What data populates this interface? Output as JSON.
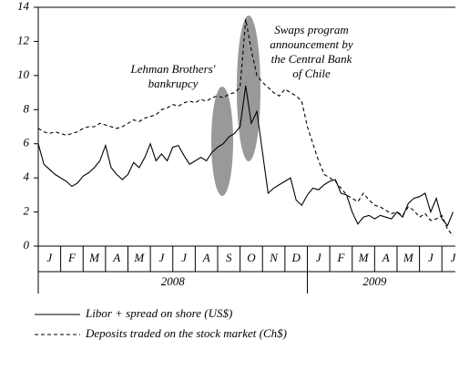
{
  "chart_data": {
    "type": "line",
    "x": [
      0,
      0.25,
      0.5,
      0.75,
      1,
      1.25,
      1.5,
      1.75,
      2,
      2.25,
      2.5,
      2.75,
      3,
      3.25,
      3.5,
      3.75,
      4,
      4.25,
      4.5,
      4.75,
      5,
      5.25,
      5.5,
      5.75,
      6,
      6.25,
      6.5,
      6.75,
      7,
      7.25,
      7.5,
      7.75,
      8,
      8.25,
      8.5,
      8.75,
      9,
      9.25,
      9.5,
      9.75,
      10,
      10.25,
      10.5,
      10.75,
      11,
      11.25,
      11.5,
      11.75,
      12,
      12.25,
      12.5,
      12.75,
      13,
      13.25,
      13.5,
      13.75,
      14,
      14.25,
      14.5,
      14.75,
      15,
      15.25,
      15.5,
      15.75,
      16,
      16.25,
      16.5,
      16.75,
      17,
      17.25,
      17.5,
      17.75,
      18,
      18.25,
      18.5
    ],
    "series": [
      {
        "name": "Libor + spread on shore (US$)",
        "color": "#000000",
        "dash": "none",
        "values": [
          6.0,
          4.8,
          4.5,
          4.2,
          4.0,
          3.8,
          3.5,
          3.7,
          4.1,
          4.3,
          4.6,
          5.0,
          5.9,
          4.6,
          4.2,
          3.9,
          4.2,
          4.9,
          4.6,
          5.2,
          6.0,
          5.0,
          5.4,
          5.0,
          5.8,
          5.9,
          5.3,
          4.8,
          5.0,
          5.2,
          5.0,
          5.5,
          5.8,
          6.0,
          6.4,
          6.6,
          7.0,
          9.4,
          7.2,
          7.9,
          5.5,
          3.1,
          3.4,
          3.6,
          3.8,
          4.0,
          2.7,
          2.4,
          3.0,
          3.4,
          3.3,
          3.6,
          3.8,
          3.9,
          3.1,
          3.0,
          2.0,
          1.3,
          1.7,
          1.8,
          1.6,
          1.8,
          1.7,
          1.6,
          2.0,
          1.7,
          2.5,
          2.8,
          2.9,
          3.1,
          2.0,
          2.8,
          1.6,
          1.2,
          2.0
        ]
      },
      {
        "name": "Deposits traded on the stock market (Ch$)",
        "color": "#000000",
        "dash": "4,3",
        "values": [
          6.9,
          6.7,
          6.6,
          6.7,
          6.6,
          6.5,
          6.6,
          6.7,
          6.9,
          7.0,
          7.0,
          7.2,
          7.1,
          7.0,
          6.9,
          7.0,
          7.2,
          7.4,
          7.3,
          7.5,
          7.6,
          7.7,
          8.0,
          8.1,
          8.3,
          8.2,
          8.4,
          8.5,
          8.4,
          8.6,
          8.5,
          8.7,
          8.8,
          8.7,
          8.9,
          9.0,
          9.3,
          13.3,
          11.5,
          10.0,
          9.6,
          9.3,
          9.0,
          8.8,
          9.2,
          9.0,
          8.8,
          8.5,
          7.0,
          6.0,
          5.0,
          4.2,
          4.0,
          3.8,
          3.4,
          3.0,
          2.8,
          2.6,
          3.1,
          2.7,
          2.4,
          2.3,
          2.1,
          1.9,
          2.0,
          1.8,
          2.3,
          2.1,
          1.7,
          1.9,
          1.5,
          1.6,
          1.8,
          1.0,
          0.6
        ]
      }
    ],
    "xlim": [
      0,
      18.6
    ],
    "xticks": [
      {
        "value": 0.5,
        "label": "J"
      },
      {
        "value": 1.5,
        "label": "F"
      },
      {
        "value": 2.5,
        "label": "M"
      },
      {
        "value": 3.5,
        "label": "A"
      },
      {
        "value": 4.5,
        "label": "M"
      },
      {
        "value": 5.5,
        "label": "J"
      },
      {
        "value": 6.5,
        "label": "J"
      },
      {
        "value": 7.5,
        "label": "A"
      },
      {
        "value": 8.5,
        "label": "S"
      },
      {
        "value": 9.5,
        "label": "O"
      },
      {
        "value": 10.5,
        "label": "N"
      },
      {
        "value": 11.5,
        "label": "D"
      },
      {
        "value": 12.5,
        "label": "J"
      },
      {
        "value": 13.5,
        "label": "F"
      },
      {
        "value": 14.5,
        "label": "M"
      },
      {
        "value": 15.5,
        "label": "A"
      },
      {
        "value": 16.5,
        "label": "M"
      },
      {
        "value": 17.5,
        "label": "J"
      },
      {
        "value": 18.5,
        "label": "J"
      }
    ],
    "year_labels": [
      {
        "value": 6,
        "label": "2008"
      },
      {
        "value": 15,
        "label": "2009"
      }
    ],
    "ylim": [
      0,
      14
    ],
    "yticks": [
      0,
      2,
      4,
      6,
      8,
      10,
      12,
      14
    ],
    "annotations": [
      {
        "lines": [
          "Lehman Brothers'",
          "bankrupcy"
        ]
      },
      {
        "lines": [
          "Swaps program",
          "announcement by",
          "the Central Bank",
          "of Chile"
        ]
      }
    ]
  }
}
